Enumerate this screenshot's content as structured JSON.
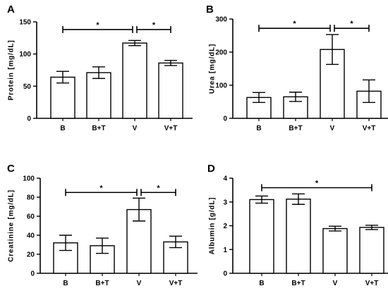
{
  "chart_data": [
    {
      "type": "bar",
      "panel": "A",
      "ylabel": "Protein [mg/dL]",
      "categories": [
        "B",
        "B+T",
        "V",
        "V+T"
      ],
      "values": [
        64,
        71,
        117,
        86
      ],
      "errors": [
        9,
        9,
        4,
        4
      ],
      "ylim": [
        0,
        150
      ],
      "yticks": [
        "0",
        "50",
        "100",
        "150"
      ],
      "significance": [
        {
          "from": 0,
          "to": 2,
          "label": "*",
          "y": 138
        },
        {
          "from": 2,
          "to": 3,
          "label": "*",
          "y": 138
        }
      ]
    },
    {
      "type": "bar",
      "panel": "B",
      "ylabel": "Urea [mg/dL]",
      "categories": [
        "B",
        "B+T",
        "V",
        "V+T"
      ],
      "values": [
        63,
        65,
        208,
        82
      ],
      "errors": [
        15,
        14,
        45,
        34
      ],
      "ylim": [
        0,
        300
      ],
      "yticks": [
        "0",
        "100",
        "200",
        "300"
      ],
      "significance": [
        {
          "from": 0,
          "to": 2,
          "label": "*",
          "y": 272
        },
        {
          "from": 2,
          "to": 3,
          "label": "*",
          "y": 272
        }
      ]
    },
    {
      "type": "bar",
      "panel": "C",
      "ylabel": "Creatinine [mg/dL]",
      "categories": [
        "B",
        "B+T",
        "V",
        "V+T"
      ],
      "values": [
        32,
        29,
        67,
        33
      ],
      "errors": [
        8,
        8,
        12,
        6
      ],
      "ylim": [
        0,
        100
      ],
      "yticks": [
        "0",
        "20",
        "40",
        "60",
        "80",
        "100"
      ],
      "significance": [
        {
          "from": 0,
          "to": 2,
          "label": "*",
          "y": 85
        },
        {
          "from": 2,
          "to": 3,
          "label": "*",
          "y": 85
        }
      ]
    },
    {
      "type": "bar",
      "panel": "D",
      "ylabel": "Albumin [g/dL]",
      "categories": [
        "B",
        "B+T",
        "V",
        "V+T"
      ],
      "values": [
        3.1,
        3.12,
        1.88,
        1.93
      ],
      "errors": [
        0.15,
        0.22,
        0.1,
        0.09
      ],
      "ylim": [
        0,
        4
      ],
      "yticks": [
        "0",
        "1",
        "2",
        "3",
        "4"
      ],
      "significance": [
        {
          "from": 0,
          "to": 3,
          "label": "*",
          "y": 3.6
        }
      ]
    }
  ]
}
